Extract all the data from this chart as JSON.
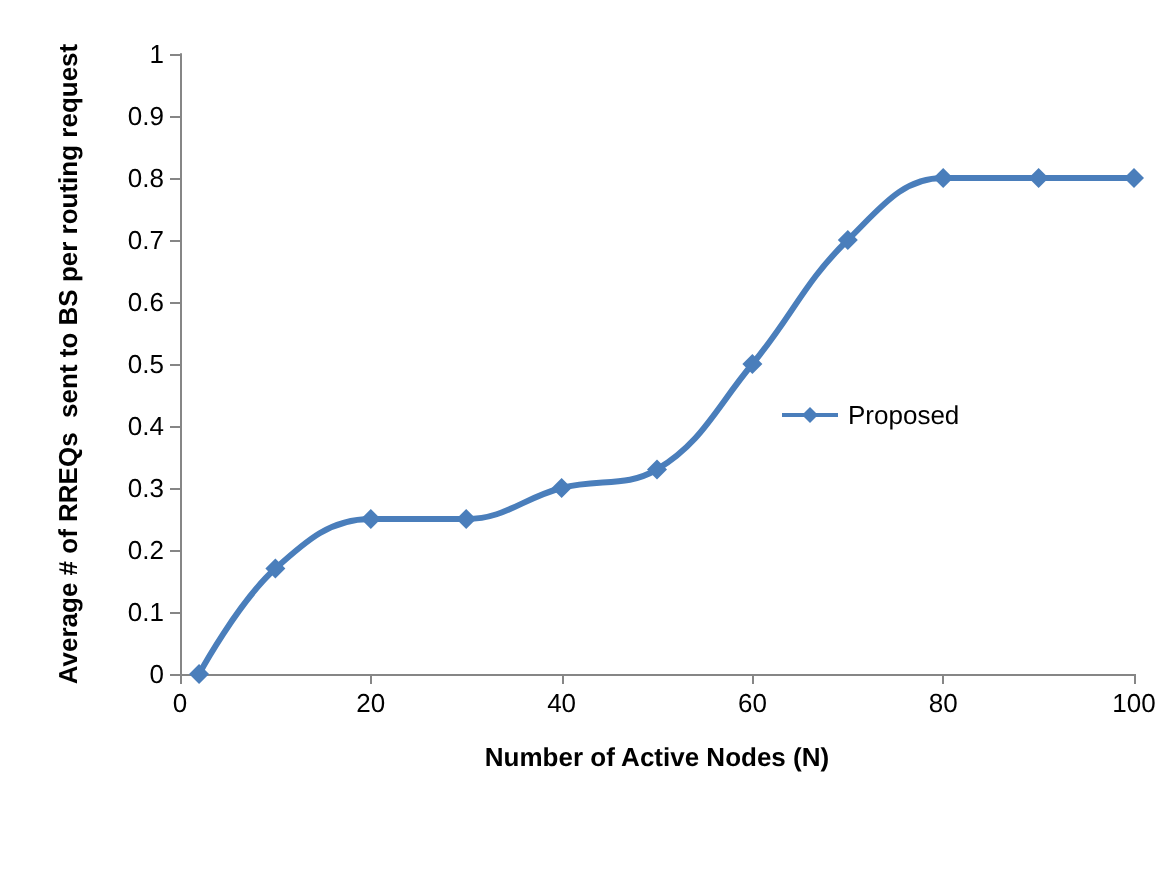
{
  "chart_data": {
    "type": "line",
    "xlabel": "Number of Active Nodes (N)",
    "ylabel": "Average # of RREQs  sent to BS per routing request",
    "x": [
      2,
      10,
      20,
      30,
      40,
      50,
      60,
      70,
      80,
      90,
      100
    ],
    "series": [
      {
        "name": "Proposed",
        "color": "#4a7ebb",
        "values": [
          0,
          0.17,
          0.25,
          0.25,
          0.3,
          0.33,
          0.5,
          0.7,
          0.8,
          0.8,
          0.8
        ]
      }
    ],
    "xlim": [
      0,
      100
    ],
    "xticks": [
      0,
      20,
      40,
      60,
      80,
      100
    ],
    "ylim": [
      0,
      1
    ],
    "yticks": [
      0,
      0.1,
      0.2,
      0.3,
      0.4,
      0.5,
      0.6,
      0.7,
      0.8,
      0.9,
      1
    ],
    "grid": false,
    "legend": "right",
    "marker": "diamond",
    "line_style": "solid"
  }
}
